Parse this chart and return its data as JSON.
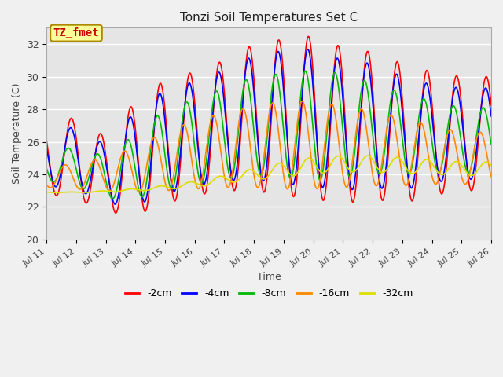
{
  "title": "Tonzi Soil Temperatures Set C",
  "xlabel": "Time",
  "ylabel": "Soil Temperature (C)",
  "ylim": [
    20,
    33
  ],
  "background_color": "#e5e5e5",
  "plot_bg_color": "#e5e5e5",
  "series_colors": {
    "-2cm": "#ff0000",
    "-4cm": "#0000ff",
    "-8cm": "#00bb00",
    "-16cm": "#ff8800",
    "-32cm": "#dddd00"
  },
  "series_order": [
    "-2cm",
    "-4cm",
    "-8cm",
    "-16cm",
    "-32cm"
  ],
  "annotation_text": "TZ_fmet",
  "annotation_color": "#cc0000",
  "annotation_bg": "#ffff99",
  "annotation_border": "#aa8800",
  "x_tick_labels": [
    "Jul 11",
    "Jul 12",
    "Jul 13",
    "Jul 14",
    "Jul 15",
    "Jul 16",
    "Jul 17",
    "Jul 18",
    "Jul 19",
    "Jul 20",
    "Jul 21",
    "Jul 22",
    "Jul 23",
    "Jul 24",
    "Jul 25",
    "Jul 26"
  ],
  "x_tick_positions": [
    0,
    24,
    48,
    72,
    96,
    120,
    144,
    168,
    192,
    216,
    240,
    264,
    288,
    312,
    336,
    360
  ],
  "y_ticks": [
    20,
    22,
    24,
    26,
    28,
    30,
    32
  ],
  "hours_total": 360,
  "linewidth": 1.2,
  "amplitude_2cm": [
    2.2,
    2.5,
    2.3,
    3.5,
    3.8,
    3.8,
    4.0,
    4.5,
    4.8,
    5.0,
    4.8,
    4.5,
    4.3,
    3.8,
    3.5
  ],
  "amplitude_4cm": [
    1.7,
    1.9,
    1.8,
    2.9,
    3.2,
    3.2,
    3.4,
    3.8,
    4.1,
    4.2,
    4.0,
    3.8,
    3.5,
    3.0,
    2.8
  ],
  "amplitude_8cm": [
    0.9,
    1.2,
    1.3,
    2.0,
    2.5,
    2.6,
    2.8,
    3.0,
    3.2,
    3.4,
    3.2,
    2.8,
    2.5,
    2.2,
    2.0
  ],
  "amplitude_16cm": [
    0.6,
    0.8,
    1.0,
    1.4,
    1.8,
    2.1,
    2.3,
    2.5,
    2.7,
    2.7,
    2.5,
    2.3,
    2.1,
    1.8,
    1.6
  ],
  "amplitude_32cm": [
    0.02,
    0.02,
    0.05,
    0.08,
    0.12,
    0.18,
    0.25,
    0.35,
    0.45,
    0.5,
    0.5,
    0.5,
    0.48,
    0.45,
    0.42
  ],
  "mean_2cm": [
    25.0,
    25.0,
    24.0,
    25.0,
    26.0,
    26.5,
    27.0,
    27.5,
    27.5,
    27.5,
    27.0,
    27.0,
    26.5,
    26.5,
    26.5
  ],
  "mean_4cm": [
    25.0,
    25.0,
    24.0,
    25.0,
    26.0,
    26.5,
    27.0,
    27.5,
    27.5,
    27.5,
    27.0,
    27.0,
    26.5,
    26.5,
    26.5
  ],
  "mean_8cm": [
    24.5,
    24.5,
    23.8,
    24.5,
    25.5,
    26.0,
    26.5,
    27.0,
    27.0,
    27.0,
    27.0,
    26.8,
    26.5,
    26.3,
    26.1
  ],
  "mean_16cm": [
    23.8,
    23.9,
    24.0,
    24.3,
    24.8,
    25.2,
    25.5,
    25.7,
    25.8,
    25.8,
    25.7,
    25.6,
    25.4,
    25.2,
    25.0
  ],
  "mean_32cm": [
    22.9,
    22.9,
    22.95,
    23.05,
    23.2,
    23.4,
    23.7,
    24.0,
    24.3,
    24.55,
    24.65,
    24.65,
    24.55,
    24.45,
    24.35
  ],
  "phase_2cm": 14.0,
  "phase_4cm": 13.5,
  "phase_8cm": 11.5,
  "phase_16cm": 9.0,
  "phase_32cm": 14.0
}
